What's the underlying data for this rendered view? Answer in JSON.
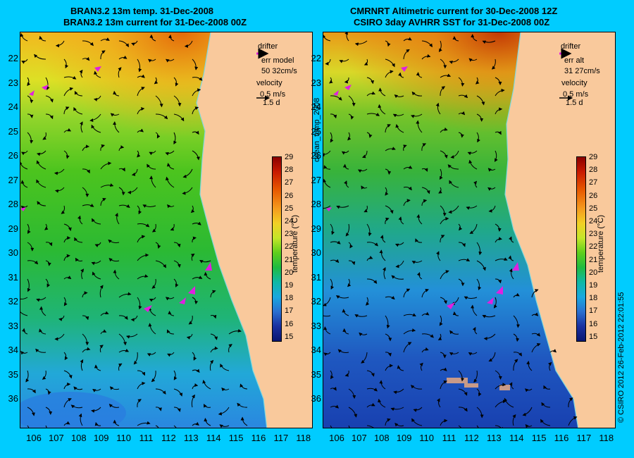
{
  "left_panel": {
    "title_line1": "BRAN3.2 13m temp. 31-Dec-2008",
    "title_line2": "BRAN3.2 13m current for 31-Dec-2008 00Z",
    "legend": {
      "drifter": "drifter",
      "err_label": "err model",
      "err_value": "50 32cm/s",
      "velocity": "velocity",
      "velocity_scale": "0.5 m/s",
      "duration": "1.5 d"
    }
  },
  "right_panel": {
    "title_line1": "CMRNRT Altimetric current for 30-Dec-2008 12Z",
    "title_line2": "CSIRO 3day AVHRR SST for 31-Dec-2008 00Z",
    "legend": {
      "drifter": "drifter",
      "err_label": "err alt",
      "err_value": "31 27cm/s",
      "velocity": "velocity",
      "velocity_scale": "0.5 m/s",
      "duration": "1.5 d"
    }
  },
  "y_ticks": [
    "22",
    "23",
    "24",
    "25",
    "26",
    "27",
    "28",
    "29",
    "30",
    "31",
    "32",
    "33",
    "34",
    "35",
    "36"
  ],
  "x_ticks": [
    "106",
    "107",
    "108",
    "109",
    "110",
    "111",
    "112",
    "113",
    "114",
    "115",
    "116",
    "117",
    "118"
  ],
  "colorbar": {
    "label": "temperature (°C)",
    "ticks": [
      "29",
      "28",
      "27",
      "26",
      "25",
      "24",
      "23",
      "22",
      "21",
      "20",
      "19",
      "18",
      "17",
      "16",
      "15"
    ]
  },
  "side_label": "ocean_temp_2008",
  "credit": "© CSIRO 2012  26-Feb-2012 22:01:55",
  "colors": {
    "background": "#00ccff",
    "land": "#f9c99c",
    "drifter": "#e020e0",
    "coast_line": "#7fd8e0"
  }
}
